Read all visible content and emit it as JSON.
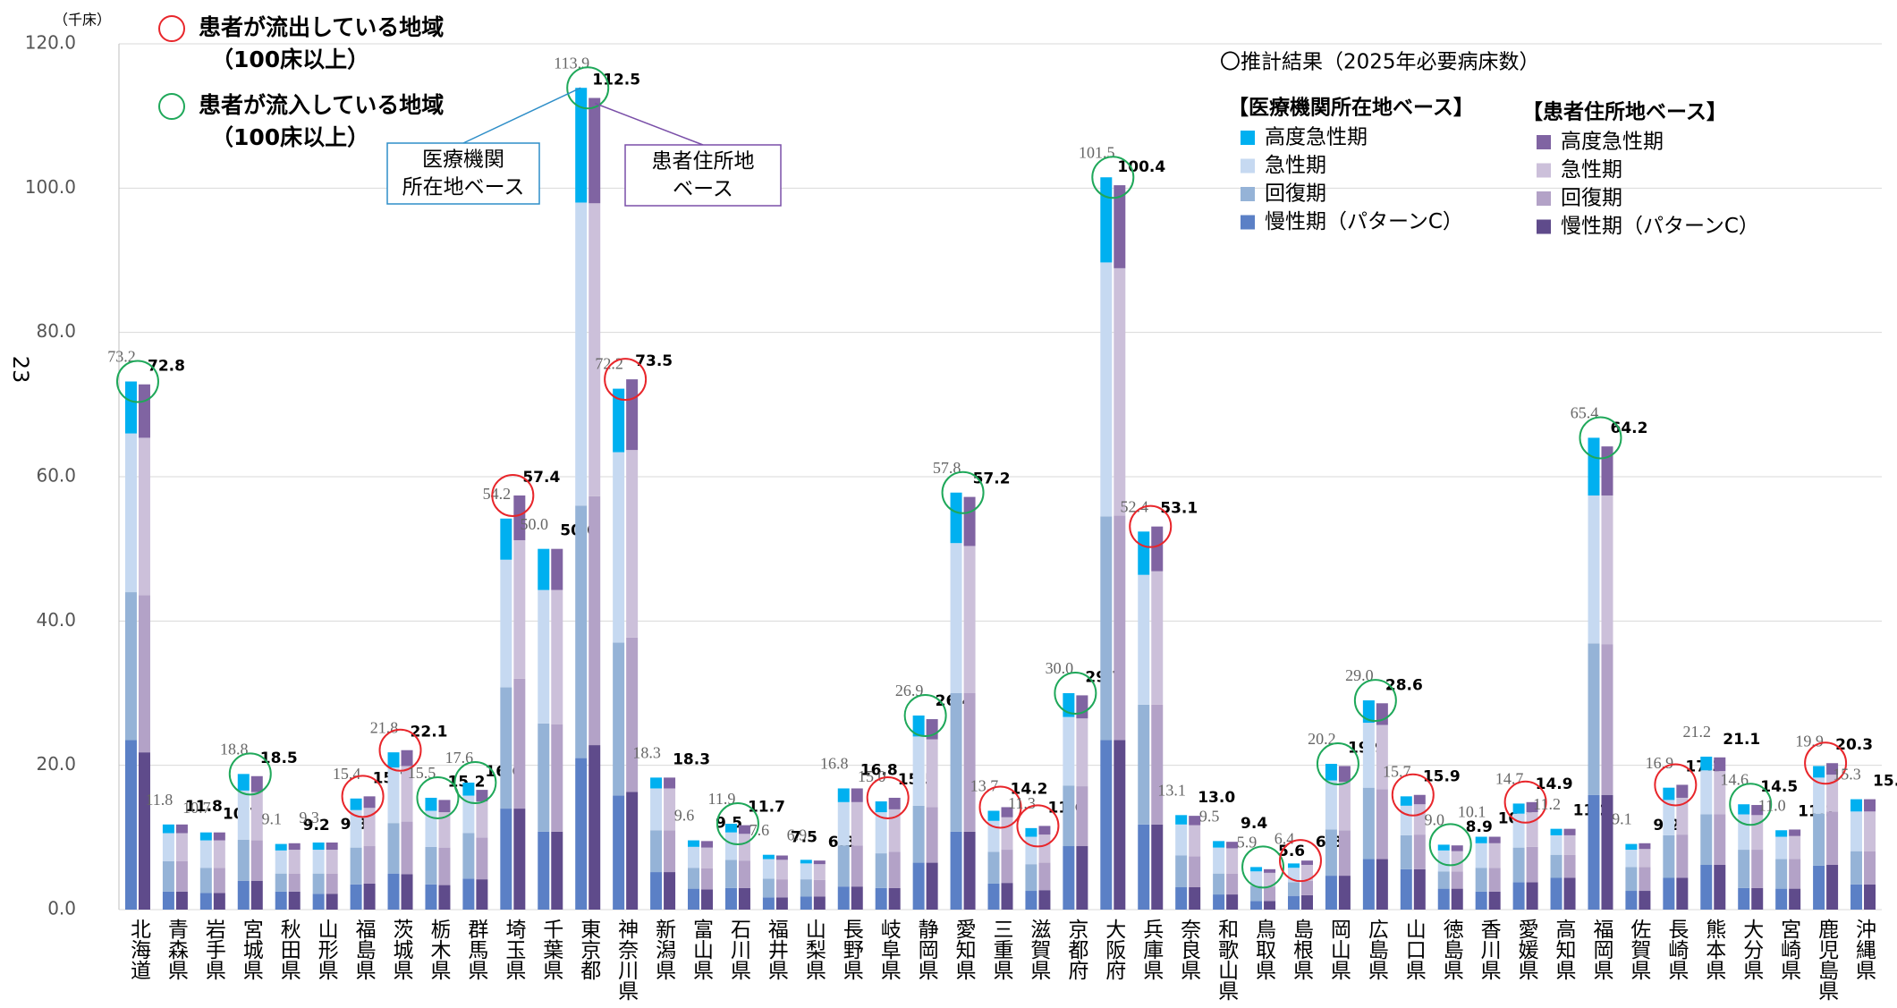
{
  "page_number": "23",
  "chart_data": {
    "type": "stacked-bar",
    "unit_label": "（千床）",
    "title": "〇推計結果（2025年必要病床数）",
    "ylim": [
      0,
      120
    ],
    "yticks": [
      {
        "value": 0,
        "label": "0.0"
      },
      {
        "value": 20,
        "label": "20.0"
      },
      {
        "value": 40,
        "label": "40.0"
      },
      {
        "value": 60,
        "label": "60.0"
      },
      {
        "value": 80,
        "label": "80.0"
      },
      {
        "value": 100,
        "label": "100.0"
      },
      {
        "value": 120,
        "label": "120.0"
      }
    ],
    "grid": true,
    "categories": [
      "北海道",
      "青森県",
      "岩手県",
      "宮城県",
      "秋田県",
      "山形県",
      "福島県",
      "茨城県",
      "栃木県",
      "群馬県",
      "埼玉県",
      "千葉県",
      "東京都",
      "神奈川県",
      "新潟県",
      "富山県",
      "石川県",
      "福井県",
      "山梨県",
      "長野県",
      "岐阜県",
      "静岡県",
      "愛知県",
      "三重県",
      "滋賀県",
      "京都府",
      "大阪府",
      "兵庫県",
      "奈良県",
      "和歌山県",
      "鳥取県",
      "島根県",
      "岡山県",
      "広島県",
      "山口県",
      "徳島県",
      "香川県",
      "愛媛県",
      "高知県",
      "福岡県",
      "佐賀県",
      "長崎県",
      "熊本県",
      "大分県",
      "宮崎県",
      "鹿児島県",
      "沖縄県"
    ],
    "flow": [
      "in",
      null,
      null,
      "in",
      null,
      null,
      "out",
      "out",
      "in",
      "in",
      "out",
      null,
      "in",
      "out",
      null,
      null,
      "in",
      null,
      null,
      null,
      "out",
      "in",
      "in",
      "out",
      "out",
      "in",
      "in",
      "out",
      null,
      null,
      "in",
      "out",
      "in",
      "in",
      "out",
      "in",
      null,
      "out",
      null,
      "in",
      null,
      "out",
      null,
      "in",
      null,
      "out",
      null
    ],
    "flow_legend": [
      {
        "flow": "out",
        "color": "#e8262b",
        "label": "患者が流出している地域",
        "note": "（100床以上）"
      },
      {
        "flow": "in",
        "color": "#1fa85a",
        "label": "患者が流入している地域",
        "note": "（100床以上）"
      }
    ],
    "groups": [
      {
        "name": "【医療機関所在地ベース】",
        "callout": [
          "医療機関",
          "所在地ベース"
        ],
        "callout_color": "#2e8ec8",
        "totals": [
          73.2,
          11.8,
          10.7,
          18.8,
          9.1,
          9.3,
          15.4,
          21.8,
          15.5,
          17.6,
          54.2,
          50.0,
          113.9,
          72.2,
          18.3,
          9.6,
          11.9,
          7.6,
          6.9,
          16.8,
          15.0,
          26.9,
          57.8,
          13.7,
          11.3,
          30.0,
          101.5,
          52.4,
          13.1,
          9.5,
          5.9,
          6.4,
          20.2,
          29.0,
          15.7,
          9.0,
          10.1,
          14.7,
          11.2,
          65.4,
          9.1,
          16.9,
          21.2,
          14.6,
          11.0,
          19.9,
          15.3
        ],
        "total_labels": [
          "73.2",
          "11.8",
          "10.7",
          "18.8",
          "9.1",
          "9.3",
          "15.4",
          "21.8",
          "15.5",
          "17.6",
          "54.2",
          "50.0",
          "113.9",
          "72.2",
          "18.3",
          "9.6",
          "11.9",
          "7.6",
          "6.9",
          "16.8",
          "15.0",
          "26.9",
          "57.8",
          "13.7",
          "11.3",
          "30.0",
          "101.5",
          "52.4",
          "13.1",
          "9.5",
          "5.9",
          "6.4",
          "20.2",
          "29.0",
          "15.7",
          "9.0",
          "10.1",
          "14.7",
          "11.2",
          "65.4",
          "9.1",
          "16.9",
          "21.2",
          "14.6",
          "11.0",
          "19.9",
          "15.3"
        ],
        "series": [
          {
            "name": "高度急性期",
            "color": "#00b0f0",
            "values": [
              7.2,
              1.2,
              1.1,
              2.3,
              0.9,
              1.0,
              1.6,
              2.1,
              1.8,
              1.8,
              5.7,
              5.7,
              15.9,
              8.8,
              1.5,
              0.9,
              1.2,
              0.6,
              0.5,
              1.9,
              1.5,
              2.9,
              7.0,
              1.4,
              1.2,
              3.3,
              11.8,
              6.0,
              1.3,
              0.9,
              0.6,
              0.6,
              2.3,
              3.1,
              1.3,
              0.8,
              0.9,
              1.4,
              0.9,
              8.0,
              0.8,
              1.7,
              1.9,
              1.4,
              0.9,
              1.6,
              1.7
            ]
          },
          {
            "name": "急性期",
            "color": "#c6d9f1",
            "values": [
              22.0,
              3.9,
              3.8,
              6.8,
              3.2,
              3.3,
              5.2,
              7.7,
              5.0,
              5.2,
              17.7,
              18.5,
              42.0,
              26.4,
              5.8,
              2.9,
              3.8,
              2.7,
              2.2,
              6.0,
              5.7,
              9.6,
              20.8,
              4.3,
              3.8,
              9.5,
              35.2,
              18.0,
              4.3,
              3.6,
              2.0,
              2.0,
              6.8,
              9.0,
              4.1,
              2.9,
              3.4,
              4.7,
              2.7,
              20.5,
              2.4,
              4.9,
              6.1,
              4.9,
              3.1,
              5.0,
              5.5
            ]
          },
          {
            "name": "回復期",
            "color": "#95b3d7",
            "values": [
              20.5,
              4.2,
              3.5,
              5.7,
              2.5,
              2.8,
              5.1,
              7.0,
              5.2,
              6.3,
              16.8,
              15.0,
              35.0,
              21.2,
              5.8,
              2.9,
              3.9,
              2.6,
              2.4,
              5.7,
              4.8,
              7.9,
              19.2,
              4.4,
              3.7,
              8.4,
              31.0,
              16.6,
              4.4,
              2.9,
              2.1,
              1.9,
              6.4,
              9.9,
              4.7,
              2.4,
              3.3,
              4.8,
              3.2,
              21.0,
              3.3,
              5.9,
              7.0,
              5.3,
              4.1,
              7.2,
              4.6
            ]
          },
          {
            "name": "慢性期（パターンC）",
            "color": "#5b80c6",
            "values": [
              23.5,
              2.5,
              2.3,
              4.0,
              2.5,
              2.2,
              3.5,
              5.0,
              3.5,
              4.3,
              14.0,
              10.8,
              21.0,
              15.8,
              5.2,
              2.9,
              3.0,
              1.7,
              1.8,
              3.2,
              3.0,
              6.5,
              10.8,
              3.6,
              2.6,
              8.8,
              23.5,
              11.8,
              3.1,
              2.1,
              1.2,
              1.9,
              4.7,
              7.0,
              5.6,
              2.9,
              2.5,
              3.8,
              4.4,
              15.9,
              2.6,
              4.4,
              6.2,
              3.0,
              2.9,
              6.1,
              3.5
            ]
          }
        ]
      },
      {
        "name": "【患者住所地ベース】",
        "callout": [
          "患者住所地",
          "ベース"
        ],
        "callout_color": "#7a4fa8",
        "totals": [
          72.8,
          11.8,
          10.7,
          18.5,
          9.2,
          9.3,
          15.7,
          22.1,
          15.2,
          16.6,
          57.4,
          50.0,
          112.5,
          73.5,
          18.3,
          9.5,
          11.7,
          7.5,
          6.8,
          16.8,
          15.5,
          26.4,
          57.2,
          14.2,
          11.6,
          29.7,
          100.4,
          53.1,
          13.0,
          9.4,
          5.6,
          6.8,
          19.9,
          28.6,
          15.9,
          8.9,
          10.1,
          14.9,
          11.2,
          64.2,
          9.2,
          17.3,
          21.1,
          14.5,
          11.1,
          20.3,
          15.3
        ],
        "total_labels": [
          "72.8",
          "11.8",
          "10.7",
          "18.5",
          "9.2",
          "9.3",
          "15.7",
          "22.1",
          "15.2",
          "16.6",
          "57.4",
          "50.0",
          "112.5",
          "73.5",
          "18.3",
          "9.5",
          "11.7",
          "7.5",
          "6.8",
          "16.8",
          "15.5",
          "26.4",
          "57.2",
          "14.2",
          "11.6",
          "29.7",
          "100.4",
          "53.1",
          "13.0",
          "9.4",
          "5.6",
          "6.8",
          "19.9",
          "28.6",
          "15.9",
          "8.9",
          "10.1",
          "14.9",
          "11.2",
          "64.2",
          "9.2",
          "17.3",
          "21.1",
          "14.5",
          "11.1",
          "20.3",
          "15.3"
        ],
        "series": [
          {
            "name": "高度急性期",
            "color": "#8064a2",
            "values": [
              7.4,
              1.2,
              1.1,
              2.2,
              0.9,
              1.0,
              1.6,
              2.2,
              1.7,
              1.6,
              6.2,
              5.7,
              14.6,
              9.8,
              1.5,
              0.9,
              1.2,
              0.6,
              0.5,
              1.9,
              1.6,
              2.8,
              6.8,
              1.4,
              1.2,
              3.2,
              11.5,
              6.2,
              1.3,
              0.9,
              0.5,
              0.6,
              2.2,
              3.0,
              1.3,
              0.8,
              0.9,
              1.4,
              0.9,
              6.8,
              0.8,
              1.8,
              1.9,
              1.4,
              0.9,
              1.6,
              1.7
            ]
          },
          {
            "name": "急性期",
            "color": "#ccc0da",
            "values": [
              21.8,
              3.9,
              3.8,
              6.7,
              3.3,
              3.3,
              5.3,
              7.7,
              4.9,
              5.0,
              19.2,
              18.6,
              40.6,
              26.0,
              5.8,
              2.9,
              3.7,
              2.7,
              2.2,
              6.0,
              5.9,
              9.4,
              20.4,
              4.5,
              3.9,
              9.4,
              34.3,
              18.5,
              4.3,
              3.5,
              1.9,
              2.2,
              6.7,
              8.9,
              4.2,
              2.8,
              3.4,
              4.8,
              2.7,
              20.6,
              2.5,
              5.1,
              6.0,
              4.8,
              3.2,
              5.1,
              5.5
            ]
          },
          {
            "name": "回復期",
            "color": "#b3a2c7",
            "values": [
              21.8,
              4.2,
              3.5,
              5.6,
              2.5,
              2.8,
              5.2,
              7.3,
              5.2,
              5.8,
              18.0,
              14.9,
              34.5,
              21.4,
              5.8,
              2.9,
              3.8,
              2.5,
              2.3,
              5.7,
              5.0,
              7.7,
              19.2,
              4.6,
              3.8,
              8.3,
              31.1,
              16.6,
              4.3,
              2.9,
              2.0,
              2.0,
              6.3,
              9.7,
              4.8,
              2.4,
              3.3,
              4.9,
              3.2,
              20.9,
              3.3,
              6.0,
              7.0,
              5.3,
              4.1,
              7.4,
              4.6
            ]
          },
          {
            "name": "慢性期（パターンC）",
            "color": "#5f4b8b",
            "values": [
              21.8,
              2.5,
              2.3,
              4.0,
              2.5,
              2.2,
              3.6,
              4.9,
              3.4,
              4.2,
              14.0,
              10.8,
              22.8,
              16.3,
              5.2,
              2.8,
              3.0,
              1.7,
              1.8,
              3.2,
              3.0,
              6.5,
              10.8,
              3.7,
              2.7,
              8.8,
              23.5,
              11.8,
              3.1,
              2.1,
              1.2,
              2.0,
              4.7,
              7.0,
              5.6,
              2.9,
              2.5,
              3.8,
              4.4,
              15.9,
              2.6,
              4.4,
              6.2,
              3.0,
              2.9,
              6.2,
              3.5
            ]
          }
        ]
      }
    ]
  }
}
